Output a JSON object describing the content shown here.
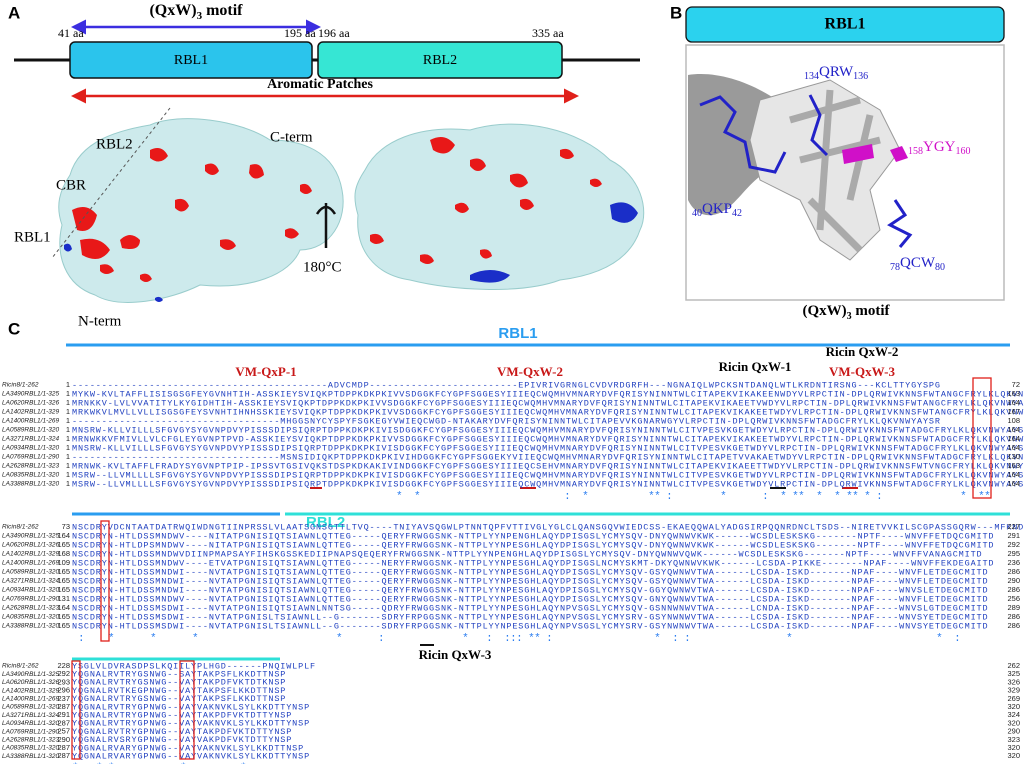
{
  "panel_a": {
    "label": "A",
    "motif_title": {
      "main": "(QxW)",
      "sub": "3",
      "rest": " motif"
    },
    "domains": [
      {
        "name": "RBL1",
        "start": "41 aa",
        "end": "195 aa"
      },
      {
        "name": "RBL2",
        "start": "196 aa",
        "end": "335 aa"
      }
    ],
    "aromatic": "Aromatic Patches",
    "labels": {
      "rbl2": "RBL2",
      "cbr": "CBR",
      "rbl1": "RBL1",
      "cterm": "C-term",
      "nterm": "N-term"
    },
    "rotation": "180°C"
  },
  "panel_b": {
    "label": "B",
    "title": "RBL1",
    "residues": [
      {
        "pre": "134",
        "main": "QRW",
        "post": "136"
      },
      {
        "pre": "158",
        "main": "YGY",
        "post": "160"
      },
      {
        "pre": "40",
        "main": "QKP",
        "post": "42"
      },
      {
        "pre": "78",
        "main": "QCW",
        "post": "80"
      }
    ],
    "caption": {
      "main": "(QxW)",
      "sub": "3",
      "rest": " motif"
    }
  },
  "panel_c": {
    "label": "C",
    "rbl1": "RBL1",
    "rbl2": "RBL2",
    "motifs": [
      "VM-QxP-1",
      "VM-QxW-2",
      "Ricin QxW-1",
      "Ricin QxW-2",
      "VM-QxW-3",
      "Ricin QxW-3"
    ],
    "blocks": [
      {
        "rows": [
          {
            "name": "Ricin8/1-262",
            "start": "1",
            "seq": "-------------------------------------------ADVCMDP-------------------------EPIVRIVGRNGLCVDVRDGRFH---NGNAIQLWPCKSNTDANQLWTLKRDNTIRSNG---KCLTTYGYSPG",
            "end": "72"
          },
          {
            "name": "LA3490RBL1/1-325",
            "start": "1",
            "seq": "MYKW-KVLTAFFLISISGSGFEYGVNHTIH-ASSKIEYSVIQKPTDPPKDKPKIVVSDGGKFCYGPFSGGESYIIIEQCWQMHVMNARYDVFQRISYNINNTWLCITAPEKVIKAKEENWDYVLRPCTIN-DPLQRWIVKNNSFWTANGCFRYLKLQKVNWYGYSR",
            "end": "163"
          },
          {
            "name": "LA0620RBL1/1-326",
            "start": "1",
            "seq": "MRNKKV-LVLVVATITYLKYGIDHTIH-ASSKIEYSVIQKPTDPPKDKPKIVVSDGGKFCYGPFSGGESYIIIEQCWQMHVMNARYDVFQRISYNINNTWLCITAPEKVIKAEETVWDYVLRPCTIN-DPLQRWIVKNNSFWTANGCFRYLKLQKVNWYAYSR",
            "end": "164"
          },
          {
            "name": "LA1402RBL1/1-329",
            "start": "1",
            "seq": "MRKWKVLMVLLVLLISGSGFEYSVNHTIHNHSSKIEYSVIQKPTDPPKDKPKIVVSDGGKFCYGPFSGGESYIIIEQCWQMHVMNARYDVFQRISYNINNTWLCITAPEKVIKAKEETWDYVLRPCTIN-DPLQRWIVKNNSFWTANGCFRYLKLQKVNWYGYSR",
            "end": "167"
          },
          {
            "name": "LA1400RBL1/1-269",
            "start": "1",
            "seq": "-----------------------------------MHGGSNYCYSPYFSGKEGYVWIEQCWGD-NTAKARYDVFQRISYNINNTWLCITAPEVVKGNARWGYVLRPCTIN-DPLQRWIVKNNSFWTADGCFRYLKLQKVNWYAYSR",
            "end": "108"
          },
          {
            "name": "LA0589RBL1/1-320",
            "start": "1",
            "seq": "MNSRW-KLLVILLLSFGVGYSYGVNPDVYPISSSDIPSIQRPTDPPKDKPKIVISDGGKFCYGPFSGGESYIIIEQCWQMHVMNARYDVFQRISYNINNTWLCITVPESVKGETWDYVLRPCTIN-DPLQRWIVKNNSFWTADGCFRYLKLQKVNWYAYSR",
            "end": "164"
          },
          {
            "name": "LA3271RBL1/1-324",
            "start": "1",
            "seq": "MRNWKKVFMIVLLVLCFGLEYGVNPTPVD-ASSKIEYSVIQKPTDPPKDKPKIVVSDGGKFCYGPFSGGESYIIIEQCWQMHVMNARYDVFQRISYNINNTWLCITAPEKVIKAKEETWDYVLRPCTIN-DPLQRWIVKNNSFWTADGCFRYLKLQKVNWYAYSR",
            "end": "164"
          },
          {
            "name": "LA0934RBL1/1-320",
            "start": "1",
            "seq": "MNSRW-KLLVILLLSFGVGYSYGVNPDVYPISSSDIPSIQRPTDPPKDKPKIVISDGGKFCYGPFSGGESYIIIEQCWQMHVMNARYDVFQRISYNINNTWLCITVPESVKGETWDYVLRPCTIN-DPLQRWIVKNNSFWTADGCFRYLKLQKVNWYAYSR",
            "end": "164"
          },
          {
            "name": "LA0769RBL1/1-290",
            "start": "1",
            "seq": "-----------------------------------MSNSIDIQKPTDPPKDKPKIVIHDGGKFCYGPFSGGEKYVIIEQCWQMHVMNARYDVFQRISYNINNTWLCITAPETVVAKAETWDYVLRPCTIN-DPLQRWIVKNNSFWTADGCFRYLKLQKVNWYAYSR",
            "end": "130"
          },
          {
            "name": "LA2628RBL1/1-323",
            "start": "1",
            "seq": "MRNWK-KVLTAFFLFRADYSYGVNPTPIP-IPSSVTGSIVQKSTDSPKDKAKIVINDGGKFCYGPFSGGESYIIIEQCSEHVMNARYDVFQRISYNINNTWLCITAPEKVIKAEETTWDYVLRPCTIN-DPLQRWIVKNNSFWTVNGCFRYLKLQKVNWYAYSR",
            "end": "163"
          },
          {
            "name": "LA0835RBL1/1-320",
            "start": "1",
            "seq": "MSRW--LLVMLLLLSFGVGYSYGVNPDVYPISSSDIPSIQRPTDPPKDKPKIVISDGGKFCYGPFSGGESYIIIEQCWQMHVMNARYDVFQRISYNINNTWLCITVPESVKGETWDYVLRPCTIN-DPLQRWIVKNNSFWTADGCFRYLKLQKVNWYAYSR",
            "end": "164"
          },
          {
            "name": "LA3388RBL1/1-320",
            "start": "1",
            "seq": "MSRW--LLVMLLLLSFGVGYSYGVNPDVYPISSSDIPSIQRPTDPPKDKPKIVISDGGKFCYGPFSGGESYIIIEQCWQMHVMNARYDVFQRISYNINNTWLCITVPESVKGETWDYVLRPCTIN-DPLQRWIVKNNSFWTADGCFRYLKLQKVNWYAYSR",
            "end": "164"
          }
        ],
        "conservation": "                                                      *  *                        :  *          ** :        *      :  * **  *  * ** * :             *  **"
      },
      {
        "rows": [
          {
            "name": "Ricin8/1-262",
            "start": "73",
            "seq": "NSCDRYVDCNTAATDATRWQIWDNGTIINPRSSLVLAATSGNSGTTLTVQ----TNIYAVSQGWLPTNNTQPFVTTIVGLYGLCLQANSGQVWIEDCSS-EKAEQQWALYADGSIRPQQNRDNCLTSDS--NIRETVVKILSCGPASSGQRW---MFKNDGTILNL",
            "end": "227"
          },
          {
            "name": "LA3490RBL1/1-325",
            "start": "164",
            "seq": "NSCDRYN-HTLDSSMNDWV----NITATPGNISIQTSIAWNLQTTEG-----QERYFRWGGSNK-NTTPLYYNPENGHLAQYDPISGSLYCMYSQV-DNYQWNWVKWK------WCSDLESKSKG-------NPTF----WNVFFETDQCGMITD",
            "end": "291"
          },
          {
            "name": "LA0620RBL1/1-326",
            "start": "165",
            "seq": "NSCDRYN-HTLDPSMNDWV----NITATPGNISIQTSIAWNLQTTEG-----QERYFRWGGSNK-NTTPLYYNPESGHLAQYDPISGSLYCMYSQV-DNYQWNWVKWK------WCSDLESKSKG-------NPTF----WNVFFETDQCGMITD",
            "end": "292"
          },
          {
            "name": "LA1402RBL1/1-329",
            "start": "168",
            "seq": "NSCDRYN-HTLDSSMNDWVDIINPMAPSAYFIHSKGSSKEDIIPNAPSQEQERYFRWGGSNK-NTTPLYYNPENGHLAQYDPISGSLYCMYSQV-DNYQWNWVQWK------WCSDLESKSKG-------NPTF----WNVFFVANAGCMITD",
            "end": "295"
          },
          {
            "name": "LA1400RBL1/1-269",
            "start": "109",
            "seq": "NSCDRYN-HTLDSSMNDWV----ETVATPGNISIQTSIAWNLQTTEG-----NERYFRWGGSNK-NTTPLYYNPESGHLAQYDPISGSLNCMYSKMT-DKYQWNWVKWK------LCSDA-PIKKE-------NPAF----WNVFFEKDEGAITD",
            "end": "236"
          },
          {
            "name": "LA0589RBL1/1-320",
            "start": "165",
            "seq": "NSCDRYN-HTLDSSMNDWI----NVTATPGNISIQTSIAWNLQTTEG-----QERYFRWGGSNK-NTTPLYYNPESGHLAQYDPISGSLYCMYSQV-GSYQWNWVTWA------LCSDA-ISKD-------NPAF----WNVFLETDEGCMITD",
            "end": "286"
          },
          {
            "name": "LA3271RBL1/1-324",
            "start": "165",
            "seq": "NSCDRYN-HTLDSSMNDWI----NVTATPGNISIQTSIAWNLQTTEG-----QERYFRWGGSNK-NTTPLYYNPESGHLAQYDPISGSLYCMYSQV-GSYQWNWVTWA------LCSDA-ISKD-------NPAF----WNVFLETDEGCMITD",
            "end": "290"
          },
          {
            "name": "LA0934RBL1/1-320",
            "start": "165",
            "seq": "NSCDRYN-HTLDSSMNDWI----NVTATPGNISIQTSIAWNLQTTEG-----QERYFRWGGSNK-NTTPLYYNPESGHLAQYDPISGSLYCMYSQV-GGYQWNWVTWA------LCSDA-ISKD-------NPAF----WNVSLETDEGCMITD",
            "end": "286"
          },
          {
            "name": "LA0769RBL1/1-290",
            "start": "131",
            "seq": "NSCDRYN-HTLDSSMNDWV----NVTATPGNISIQTSIAWNLQTTEG-----QERYFRWGGSNK-NTTPLYYNPESGHLAQYDPISGSLYCMYSQV-GNYQWNWVTWA------LCSDA-ISKD-------NPAF----WNVFLETDEGCMITD",
            "end": "256"
          },
          {
            "name": "LA2628RBL1/1-323",
            "start": "164",
            "seq": "NSCDRYN-HTLDSSMSDWI----NVTATPGNISIQTSIAWNLNNTSG-----QDRYFRWGGSNK-NTTPLYYNPESGHLAQYNPVSGSLYCMYSQV-GSNNWNWVTWA------LCNDA-ISKD-------NPAF----WNVSLGTDEGCMITD",
            "end": "289"
          },
          {
            "name": "LA0835RBL1/1-320",
            "start": "165",
            "seq": "NSCDRYN-HTLDSSMSDWI----NVTATPGNISLTSIAWNLL--G-------SDRYFRPGGSNK-NTTPLYYNPESGHLAQYNPVSGSLYCMYSRV-GSYNWNWVTWA------LCSDA-ISKD-------NPAF----WNVSYETDEGCMITD",
            "end": "286"
          },
          {
            "name": "LA3388RBL1/1-320",
            "start": "165",
            "seq": "NSCDRYN-HTLDSSMSDWI----NVTATPGNISLTSIAWNLL--G-------SDRYFRPGGSNK-NTTPLYYNPESGHLAQYNPVSGSLYCMYSRV-GSYNWNWVTWA------LCSDA-ISKD-------NPAF----WNVSYETDEGCMITD",
            "end": "286"
          }
        ],
        "conservation": " :    *      *      *                       *      :             *   :  ::: ** :                 *  : :                *                        *  :"
      },
      {
        "rows": [
          {
            "name": "Ricin8/1-262",
            "start": "228",
            "seq": "YSGLVLDVRASDPSLKQIILYPLHGD------PNQIWLPLF",
            "end": "262"
          },
          {
            "name": "LA3490RBL1/1-325",
            "start": "292",
            "seq": "YQGNALRVTRYGSNWG--SAYTAKPSFLKKDTTNSP",
            "end": "325"
          },
          {
            "name": "LA0620RBL1/1-326",
            "start": "293",
            "seq": "YQGNALRVTRYGSNWG--VAYTAKPDFVKTDTKNSP",
            "end": "326"
          },
          {
            "name": "LA1402RBL1/1-329",
            "start": "296",
            "seq": "YQGNALRVTKEGPNWG--VAYTAKPSFLKKDTTNSP",
            "end": "329"
          },
          {
            "name": "LA1400RBL1/1-269",
            "start": "237",
            "seq": "YQGNALRVTRYGSNWG--VAYTAKPSFLKKDTTNSP",
            "end": "269"
          },
          {
            "name": "LA0589RBL1/1-320",
            "start": "287",
            "seq": "YQGNALRVTRYGPNWG--VAYVAKNVKLSYLKKDTTYNSP",
            "end": "320"
          },
          {
            "name": "LA3271RBL1/1-324",
            "start": "291",
            "seq": "YQGNALRVTRYGPNWG--VAYTAKPDFVKTDTTYNSP",
            "end": "324"
          },
          {
            "name": "LA0934RBL1/1-320",
            "start": "287",
            "seq": "YQGNALRVTRYGPNWG--VAYVAKNVKLSYLKKDTTYNSP",
            "end": "320"
          },
          {
            "name": "LA0769RBL1/1-290",
            "start": "257",
            "seq": "YQGNALRVTRYGPNWG--VAYTAKPDFVKTDTTYNSP",
            "end": "290"
          },
          {
            "name": "LA2628RBL1/1-323",
            "start": "290",
            "seq": "YQGNALRVSRYGPNWG--VAYVAKPDFVKTDTTYNSP",
            "end": "323"
          },
          {
            "name": "LA0835RBL1/1-320",
            "start": "287",
            "seq": "YQGNALRVARYGPNWG--VAYVAKNVKLSYLKKDTTNSP",
            "end": "320"
          },
          {
            "name": "LA3388RBL1/1-320",
            "start": "287",
            "seq": "YQGNALRVARYGPNWG--VAYVAKNVKLSYLKKDTTYNSP",
            "end": "320"
          }
        ],
        "conservation": "* : * *           *:        *"
      }
    ]
  }
}
